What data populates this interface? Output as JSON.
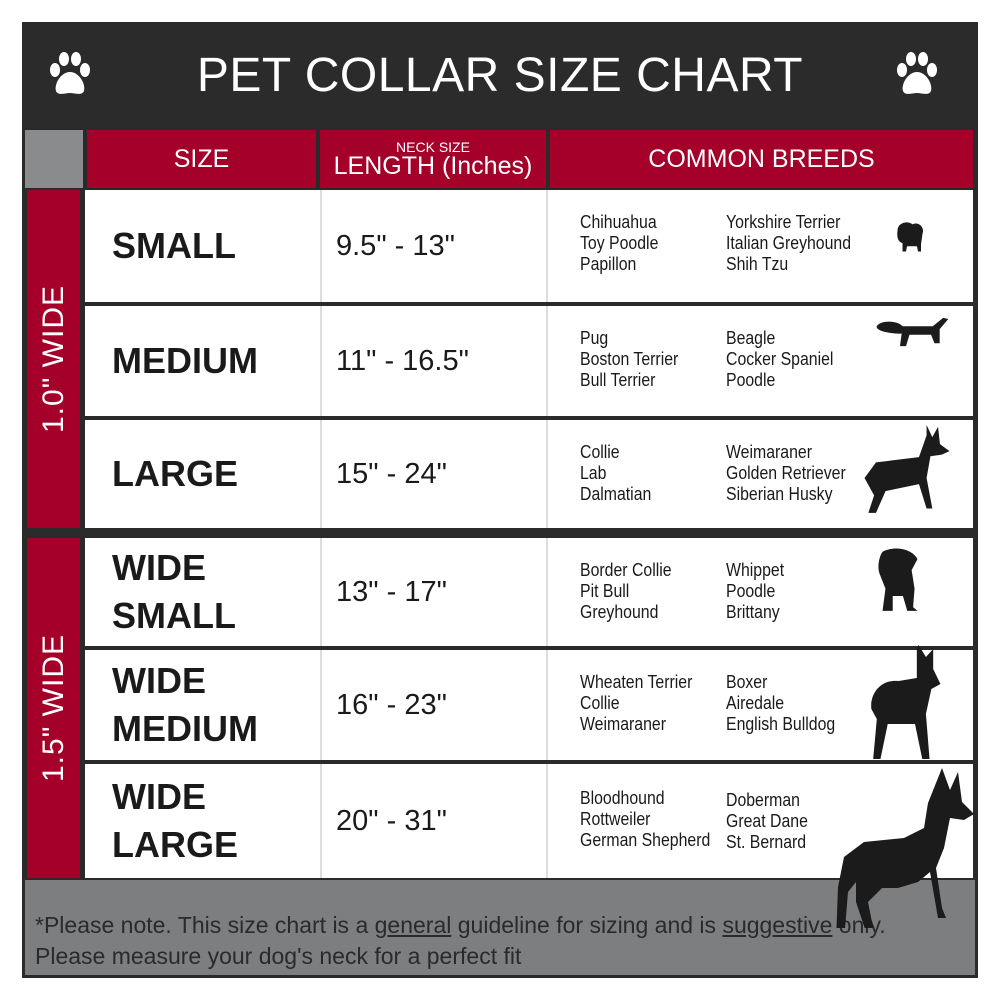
{
  "title": "PET COLLAR SIZE CHART",
  "header": {
    "size": "SIZE",
    "neck_small": "NECK SIZE",
    "length": "LENGTH (Inches)",
    "breeds": "COMMON BREEDS"
  },
  "groups": [
    "1.0\" WIDE",
    "1.5\" WIDE"
  ],
  "rows": [
    {
      "size": "SMALL",
      "length": "9.5\" - 13\"",
      "breeds_a": [
        "Chihuahua",
        "Toy Poodle",
        "Papillon"
      ],
      "breeds_b": [
        "Yorkshire Terrier",
        "Italian Greyhound",
        "Shih Tzu"
      ]
    },
    {
      "size": "MEDIUM",
      "length": "11\" - 16.5\"",
      "breeds_a": [
        "Pug",
        "Boston Terrier",
        "Bull Terrier"
      ],
      "breeds_b": [
        "Beagle",
        "Cocker Spaniel",
        "Poodle"
      ]
    },
    {
      "size": "LARGE",
      "length": "15\" - 24\"",
      "breeds_a": [
        "Collie",
        "Lab",
        "Dalmatian"
      ],
      "breeds_b": [
        "Weimaraner",
        "Golden Retriever",
        "Siberian Husky"
      ]
    },
    {
      "size": "WIDE SMALL",
      "length": "13\" - 17\"",
      "breeds_a": [
        "Border Collie",
        "Pit Bull",
        "Greyhound"
      ],
      "breeds_b": [
        "Whippet",
        "Poodle",
        "Brittany"
      ]
    },
    {
      "size": "WIDE MEDIUM",
      "length": "16\" - 23\"",
      "breeds_a": [
        "Wheaten Terrier",
        "Collie",
        "Weimaraner"
      ],
      "breeds_b": [
        "Boxer",
        "Airedale",
        "English Bulldog"
      ]
    },
    {
      "size": "WIDE LARGE",
      "length": "20\" - 31\"",
      "breeds_a": [
        "Bloodhound",
        "Rottweiler",
        "German Shepherd"
      ],
      "breeds_b": [
        "Doberman",
        "Great Dane",
        "St. Bernard"
      ]
    }
  ],
  "footer": {
    "p1": "*Please note. This size chart is a ",
    "u1": "general",
    "p2": " guideline for sizing and is ",
    "u2": "suggestive",
    "p3": " only.",
    "line2": "Please measure your dog's neck for a perfect fit"
  },
  "colors": {
    "accent": "#a4002a",
    "dark": "#2b2b2b",
    "footer": "#7d7e80"
  },
  "icons": [
    "paw-icon",
    "dog-silhouette-icon"
  ]
}
